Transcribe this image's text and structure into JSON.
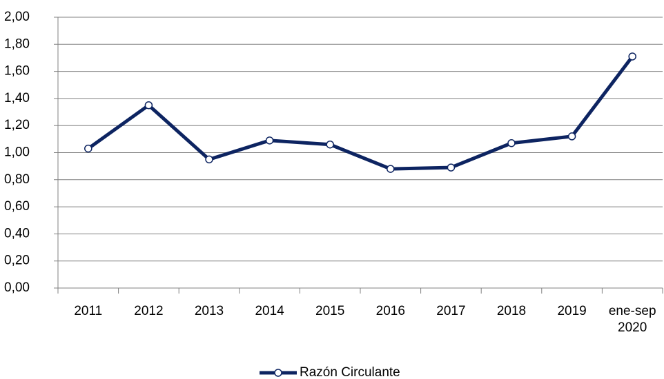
{
  "chart_data": {
    "type": "line",
    "categories": [
      "2011",
      "2012",
      "2013",
      "2014",
      "2015",
      "2016",
      "2017",
      "2018",
      "2019",
      "ene-sep 2020"
    ],
    "series": [
      {
        "name": "Razón Circulante",
        "color": "#0d2461",
        "values": [
          1.03,
          1.35,
          0.95,
          1.09,
          1.06,
          0.88,
          0.89,
          1.07,
          1.12,
          1.71
        ]
      }
    ],
    "ylim": [
      0,
      2
    ],
    "yticks": [
      {
        "value": 0,
        "label": "0,00"
      },
      {
        "value": 0.2,
        "label": "0,20"
      },
      {
        "value": 0.4,
        "label": "0,40"
      },
      {
        "value": 0.6,
        "label": "0,60"
      },
      {
        "value": 0.8,
        "label": "0,80"
      },
      {
        "value": 1,
        "label": "1,00"
      },
      {
        "value": 1.2,
        "label": "1,20"
      },
      {
        "value": 1.4,
        "label": "1,40"
      },
      {
        "value": 1.6,
        "label": "1,60"
      },
      {
        "value": 1.8,
        "label": "1,80"
      },
      {
        "value": 2,
        "label": "2,00"
      }
    ],
    "grid": true,
    "legend": "bottom"
  }
}
